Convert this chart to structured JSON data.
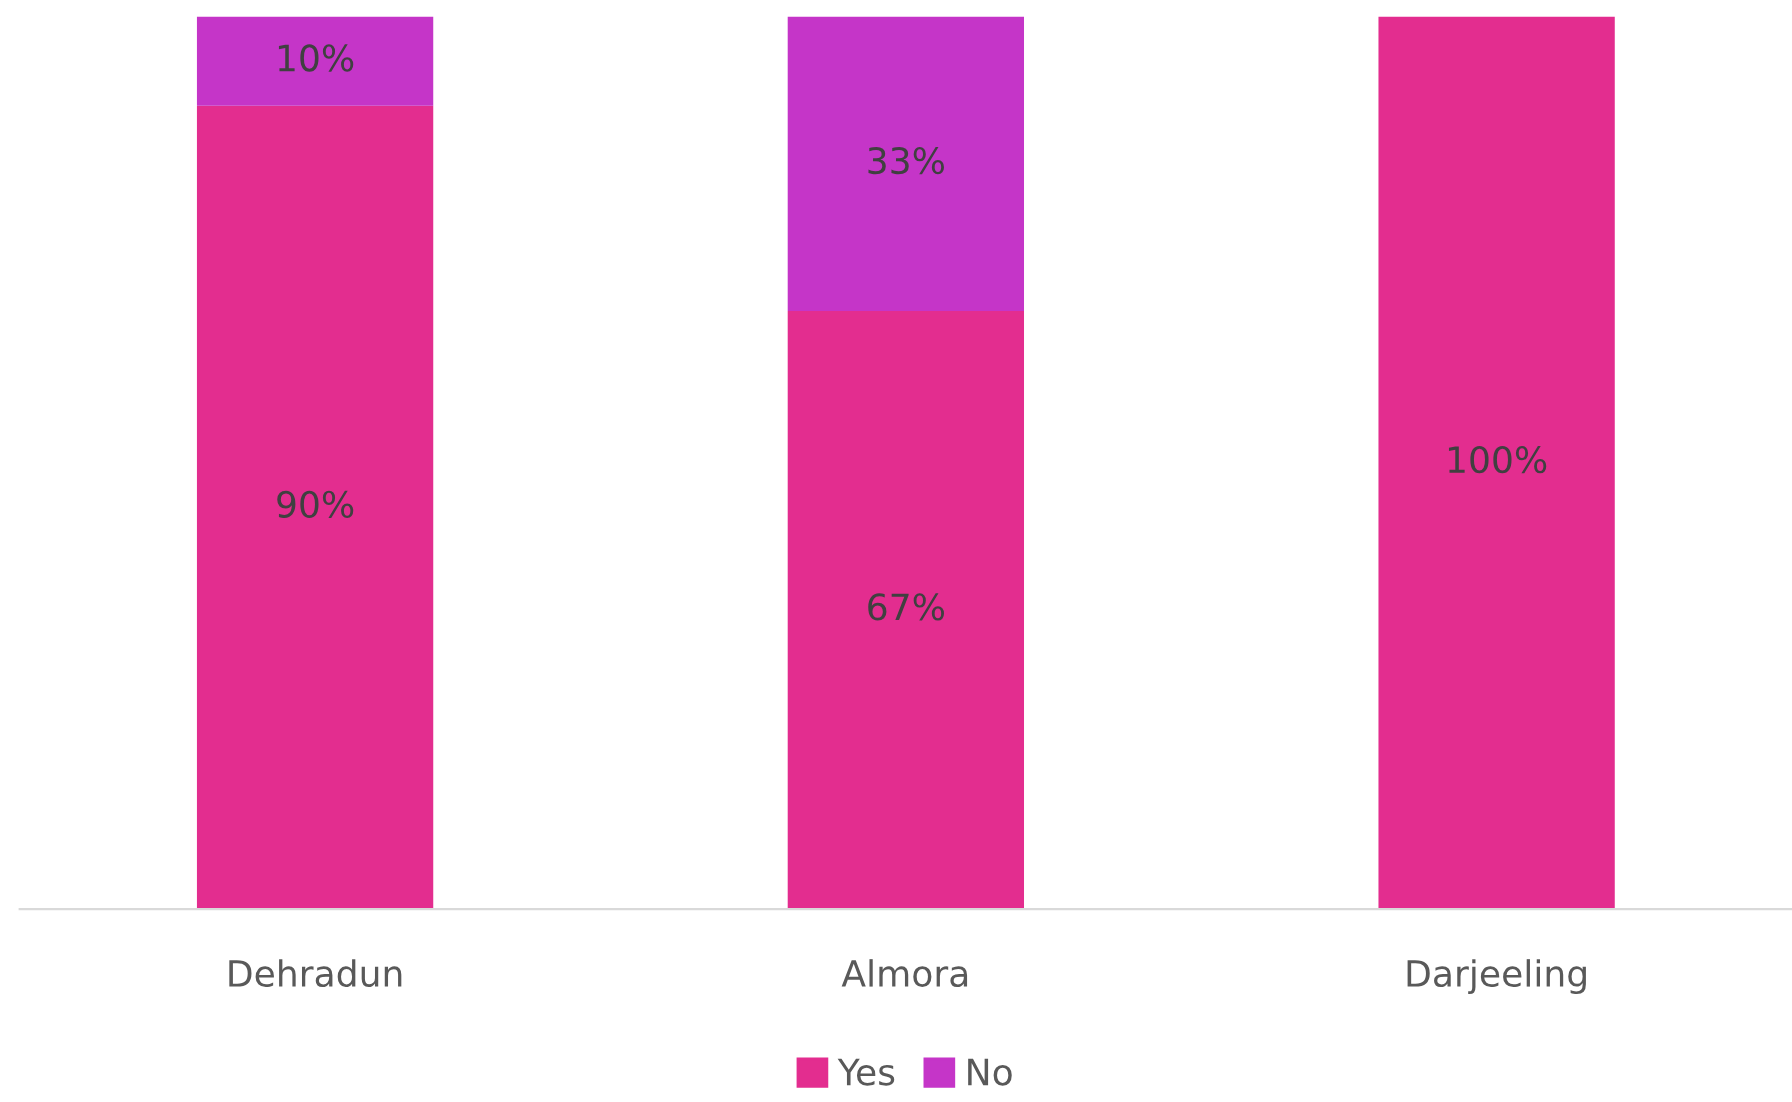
{
  "chart_data": {
    "type": "bar",
    "stacked": true,
    "categories": [
      "Dehradun",
      "Almora",
      "Darjeeling"
    ],
    "series": [
      {
        "name": "Yes",
        "color": "#e32d8f",
        "values": [
          90,
          67,
          100
        ],
        "value_labels": [
          "90%",
          "67%",
          "100%"
        ]
      },
      {
        "name": "No",
        "color": "#c535c8",
        "values": [
          10,
          33,
          null
        ],
        "value_labels": [
          "10%",
          "33%",
          null
        ]
      }
    ],
    "ylim": [
      0,
      100
    ],
    "tick_labels": "x",
    "grid": false,
    "legend": "bottom"
  }
}
